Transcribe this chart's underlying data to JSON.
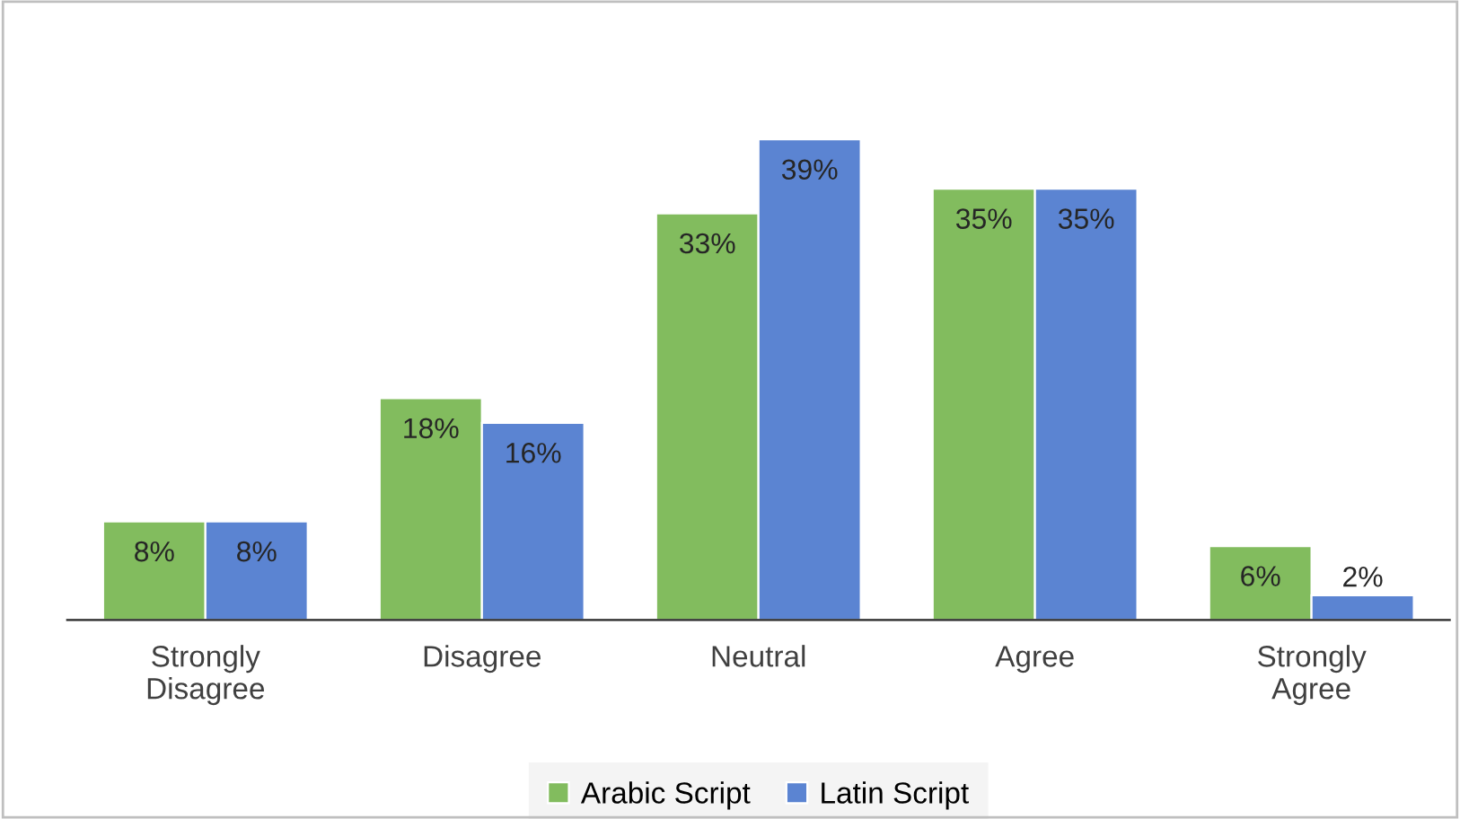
{
  "chart_data": {
    "type": "bar",
    "categories": [
      "Strongly\nDisagree",
      "Disagree",
      "Neutral",
      "Agree",
      "Strongly\nAgree"
    ],
    "series": [
      {
        "name": "Arabic Script",
        "color": "#82bc5e",
        "values": [
          8,
          18,
          33,
          35,
          6
        ],
        "value_labels": [
          "8%",
          "18%",
          "33%",
          "35%",
          "6%"
        ]
      },
      {
        "name": "Latin Script",
        "color": "#5b84d2",
        "values": [
          8,
          16,
          39,
          35,
          2
        ],
        "value_labels": [
          "8%",
          "16%",
          "39%",
          "35%",
          "2%"
        ]
      }
    ],
    "legend": "bottom",
    "grid": false
  }
}
